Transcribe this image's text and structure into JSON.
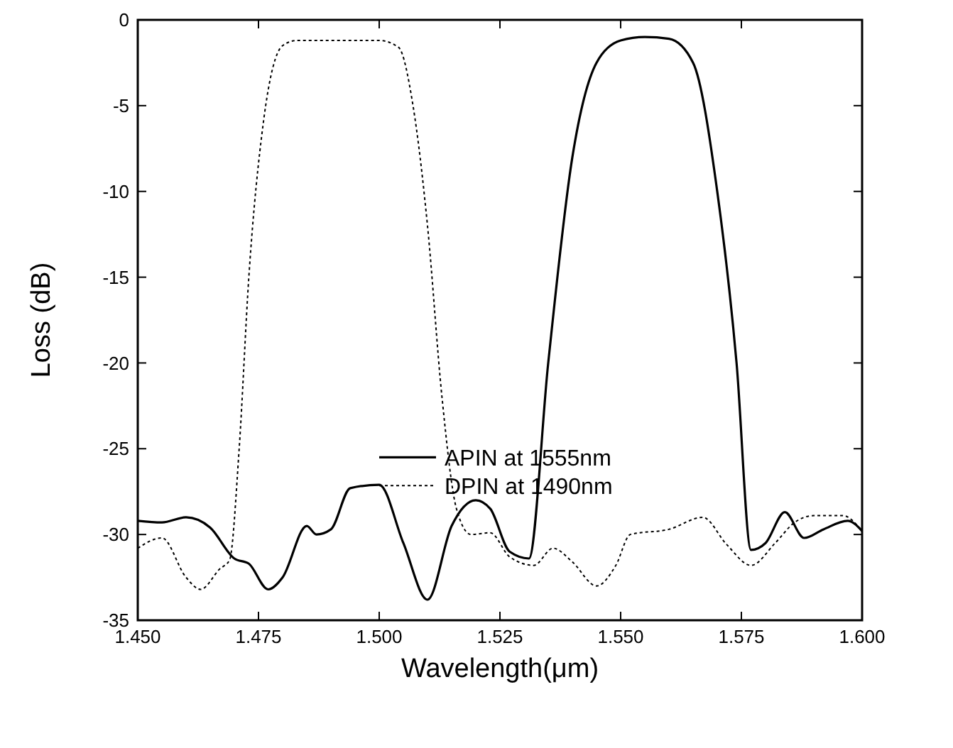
{
  "chart_data": {
    "type": "line",
    "xlabel": "Wavelength(μm)",
    "ylabel": "Loss (dB)",
    "xlim": [
      1.45,
      1.6
    ],
    "xticks": [
      {
        "value": 1.45,
        "label": "1.450"
      },
      {
        "value": 1.475,
        "label": "1.475"
      },
      {
        "value": 1.5,
        "label": "1.500"
      },
      {
        "value": 1.525,
        "label": "1.525"
      },
      {
        "value": 1.55,
        "label": "1.550"
      },
      {
        "value": 1.575,
        "label": "1.575"
      },
      {
        "value": 1.6,
        "label": "1.600"
      }
    ],
    "ylim": [
      -35,
      0
    ],
    "yticks": [
      -35,
      -30,
      -25,
      -20,
      -15,
      -10,
      -5,
      0
    ],
    "grid": false,
    "legend": "bottom",
    "marker": "none",
    "series": [
      {
        "name": "APIN at 1555nm",
        "color": "#000000",
        "line_style": "solid",
        "x": [
          1.45,
          1.455,
          1.46,
          1.465,
          1.47,
          1.473,
          1.477,
          1.48,
          1.485,
          1.487,
          1.49,
          1.494,
          1.5,
          1.505,
          1.51,
          1.515,
          1.52,
          1.523,
          1.527,
          1.531,
          1.535,
          1.54,
          1.545,
          1.55,
          1.555,
          1.56,
          1.565,
          1.57,
          1.574,
          1.577,
          1.58,
          1.584,
          1.588,
          1.592,
          1.597,
          1.6
        ],
        "values": [
          -29.2,
          -29.3,
          -29.0,
          -29.6,
          -31.4,
          -31.7,
          -33.2,
          -32.5,
          -29.5,
          -30.0,
          -29.7,
          -27.3,
          -27.1,
          -30.5,
          -33.8,
          -29.5,
          -28.0,
          -28.5,
          -31.0,
          -31.4,
          -20,
          -8,
          -2.5,
          -1.2,
          -1.0,
          -1.1,
          -2.5,
          -10,
          -20,
          -30.9,
          -30.5,
          -28.7,
          -30.2,
          -29.7,
          -29.2,
          -29.8
        ]
      },
      {
        "name": "DPIN at 1490nm",
        "color": "#000000",
        "line_style": "dotted",
        "x": [
          1.45,
          1.455,
          1.46,
          1.463,
          1.467,
          1.469,
          1.471,
          1.473,
          1.476,
          1.48,
          1.483,
          1.5,
          1.504,
          1.507,
          1.51,
          1.513,
          1.516,
          1.519,
          1.523,
          1.527,
          1.532,
          1.536,
          1.54,
          1.545,
          1.549,
          1.552,
          1.56,
          1.567,
          1.572,
          1.577,
          1.582,
          1.586,
          1.59,
          1.596,
          1.6
        ],
        "values": [
          -30.8,
          -30.2,
          -32.5,
          -33.2,
          -32.0,
          -31.5,
          -25,
          -15,
          -6,
          -1.5,
          -1.2,
          -1.2,
          -1.6,
          -5,
          -12,
          -22,
          -28.5,
          -30,
          -29.9,
          -31.3,
          -31.8,
          -30.8,
          -31.6,
          -33.0,
          -31.8,
          -30.0,
          -29.7,
          -29.0,
          -30.6,
          -31.8,
          -30.5,
          -29.3,
          -28.9,
          -28.9,
          -29.8
        ]
      }
    ]
  }
}
